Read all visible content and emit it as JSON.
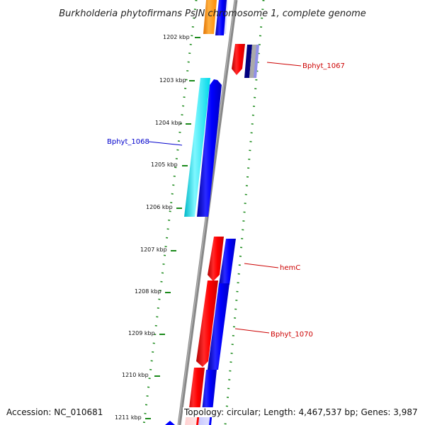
{
  "title": "Burkholderia phytofirmans PsJN chromosome 1, complete genome",
  "ticks": [
    "1202 kbp",
    "1203 kbp",
    "1204 kbp",
    "1205 kbp",
    "1206 kbp",
    "1207 kbp",
    "1208 kbp",
    "1209 kbp",
    "1210 kbp",
    "1211 kbp"
  ],
  "gene_labels": [
    {
      "text": "Bphyt_1067",
      "color": "#cc0000"
    },
    {
      "text": "Bphyt_1068",
      "color": "#0000cc"
    },
    {
      "text": "hemC",
      "color": "#cc0000"
    },
    {
      "text": "Bphyt_1070",
      "color": "#cc0000"
    }
  ],
  "colors": {
    "forward_red": "#ff0000",
    "reverse_blue": "#0000ff",
    "cyan": "#00e5ee",
    "orange": "#ff8c00",
    "navy": "#000080",
    "gray": "#aaaaaa",
    "backbone": "#888888",
    "gc_dots": "#1a8a1a"
  },
  "footer": {
    "accession": "Accession: NC_010681",
    "topology": "Topology: circular; Length: 4,467,537 bp; Genes: 3,987"
  }
}
